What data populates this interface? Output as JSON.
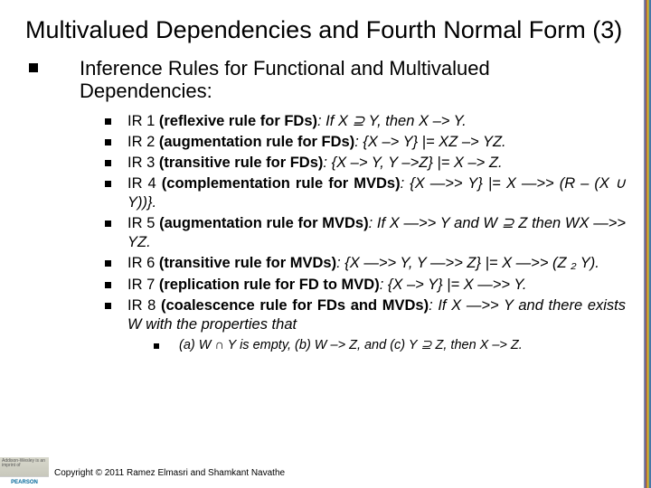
{
  "stripe_colors": [
    "#7a86a8",
    "#7a3a5a",
    "#d0a030",
    "#a0b050",
    "#4878a8"
  ],
  "title": "Multivalued Dependencies and Fourth Normal Form (3)",
  "section": "Inference Rules for Functional and Multivalued Dependencies:",
  "rules": {
    "ir1": {
      "label": "IR 1",
      "name": "(reflexive rule for FDs)",
      "body": ": If X ⊇ Y, then X  –> Y."
    },
    "ir2": {
      "label": "IR 2",
      "name": "(augmentation rule for FDs)",
      "body": ": {X –> Y} |= XZ –> YZ."
    },
    "ir3": {
      "label": "IR 3",
      "name": "(transitive rule for FDs)",
      "body": ": {X –> Y, Y –>Z} |= X –> Z."
    },
    "ir4": {
      "label": "IR 4",
      "name": "(complementation rule for MVDs)",
      "body": ": {X —>> Y} |= X —>> (R – (X ∪ Y))}."
    },
    "ir5": {
      "label": "IR 5",
      "name": "(augmentation rule for MVDs)",
      "body": ": If X —>> Y and W ⊇ Z then WX —>> YZ."
    },
    "ir6": {
      "label": "IR 6",
      "name": "(transitive rule for MVDs)",
      "body": ": {X —>> Y, Y —>> Z} |= X —>> (Z ₂ Y)."
    },
    "ir7": {
      "label": "IR 7",
      "name": "(replication rule for FD to MVD)",
      "body": ": {X –> Y} |= X —>> Y."
    },
    "ir8": {
      "label": "IR 8",
      "name": "(coalescence rule for FDs and MVDs)",
      "body": ": If X —>> Y and there exists W with the properties that"
    }
  },
  "subrule": "(a) W ∩ Y is empty, (b) W –> Z, and (c) Y ⊇ Z, then   X –> Z.",
  "logo": {
    "top": "Addison-Wesley\nis an imprint of",
    "bottom": "PEARSON"
  },
  "copyright": "Copyright © 2011 Ramez Elmasri and Shamkant Navathe"
}
